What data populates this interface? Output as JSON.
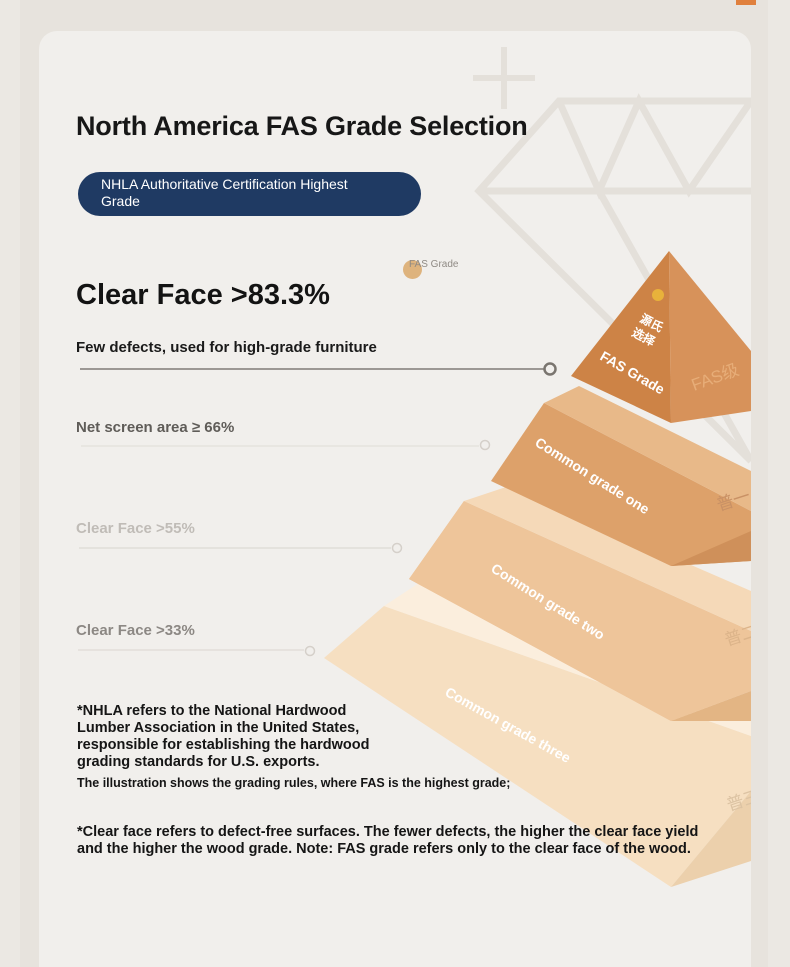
{
  "header": {
    "title": "North America FAS Grade Selection",
    "badge": "NHLA Authoritative Certification Highest Grade"
  },
  "main_grade": {
    "clear_face": "Clear Face >83.3%",
    "description": "Few defects, used for high-grade furniture"
  },
  "grade_rows": [
    {
      "label": "Net screen area ≥ 66%",
      "color": "#5f5c58"
    },
    {
      "label": "Clear Face >55%",
      "color": "#c0bcb7"
    },
    {
      "label": "Clear Face >33%",
      "color": "#8c8884"
    }
  ],
  "fas_tag": "FAS Grade",
  "pyramid": {
    "tiers": [
      {
        "label": "FAS Grade",
        "side_label": "FAS级",
        "seal": "源氏选择",
        "color": "#cd8346"
      },
      {
        "label": "Common grade one",
        "side_label": "普一",
        "color": "#dda16a"
      },
      {
        "label": "Common grade two",
        "side_label": "普二",
        "color": "#eec59a"
      },
      {
        "label": "Common grade three",
        "side_label": "普三",
        "color": "#f6dfc1"
      }
    ]
  },
  "notes": {
    "nhla": "*NHLA refers to the National Hardwood Lumber Association in the United States, responsible for establishing the hardwood grading standards for U.S. exports.",
    "illustration": "The illustration shows the grading rules, where FAS is the highest grade;",
    "clear_face": "*Clear face refers to defect-free surfaces. The fewer defects, the higher the clear face yield and the higher the wood grade. Note: FAS grade refers only to the clear face of the wood."
  }
}
